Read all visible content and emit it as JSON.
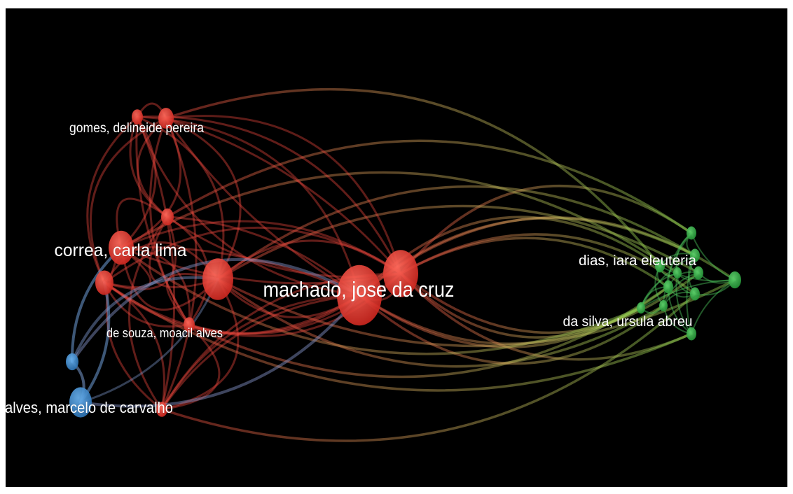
{
  "labels": {
    "gomes": "gomes, delineide pereira",
    "correa": "correa, carla lima",
    "de_souza": "de souza, moacil alves",
    "alves": "alves, marcelo de carvalho",
    "machado": "machado, jose da cruz",
    "dias": "dias, iara eleuteria",
    "da_silva": "da silva, ursula abreu"
  },
  "clusters": {
    "red": "#e8453c",
    "blue": "#3d8fd4",
    "green": "#37b24a"
  },
  "background": "#000000"
}
